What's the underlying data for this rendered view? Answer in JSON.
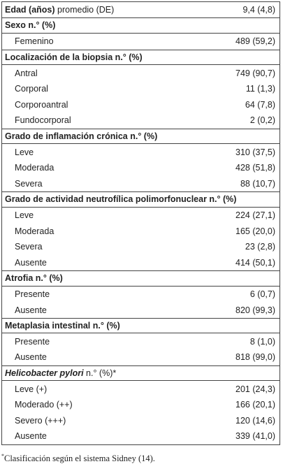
{
  "table": {
    "rows": [
      {
        "header": "Edad (años)",
        "header_suffix": " promedio (DE)",
        "value": "9,4 (4,8)"
      },
      {
        "header": "Sexo n.° (%)"
      },
      {
        "label": "Femenino",
        "value": "489 (59,2)"
      },
      {
        "header": "Localización de la biopsia n.° (%)"
      },
      {
        "label": "Antral",
        "value": "749 (90,7)"
      },
      {
        "label": "Corporal",
        "value": "11 (1,3)"
      },
      {
        "label": "Corporoantral",
        "value": "64 (7,8)"
      },
      {
        "label": "Fundocorporal",
        "value": "2 (0,2)"
      },
      {
        "header": "Grado de inflamación crónica n.° (%)"
      },
      {
        "label": "Leve",
        "value": "310 (37,5)"
      },
      {
        "label": "Moderada",
        "value": "428 (51,8)"
      },
      {
        "label": "Severa",
        "value": "88 (10,7)"
      },
      {
        "header": "Grado de actividad neutrofílica polimorfonuclear n.° (%)"
      },
      {
        "label": "Leve",
        "value": "224 (27,1)"
      },
      {
        "label": "Moderada",
        "value": "165 (20,0)"
      },
      {
        "label": "Severa",
        "value": "23 (2,8)"
      },
      {
        "label": "Ausente",
        "value": "414 (50,1)"
      },
      {
        "header": "Atrofia n.° (%)"
      },
      {
        "label": "Presente",
        "value": "6 (0,7)"
      },
      {
        "label": "Ausente",
        "value": "820 (99,3)"
      },
      {
        "header": "Metaplasia intestinal n.° (%)"
      },
      {
        "label": "Presente",
        "value": "8 (1,0)"
      },
      {
        "label": "Ausente",
        "value": "818 (99,0)"
      },
      {
        "header_italic": "Helicobacter pylori",
        "header": " n.° (%)*"
      },
      {
        "label": "Leve (+)",
        "value": "201 (24,3)"
      },
      {
        "label": "Moderado (++)",
        "value": "166 (20,1)"
      },
      {
        "label": "Severo (+++)",
        "value": "120 (14,6)"
      },
      {
        "label": "Ausente",
        "value": "339 (41,0)"
      }
    ]
  },
  "footnote": {
    "mark": "*",
    "text": "Clasificación según el sistema Sidney (14)."
  }
}
